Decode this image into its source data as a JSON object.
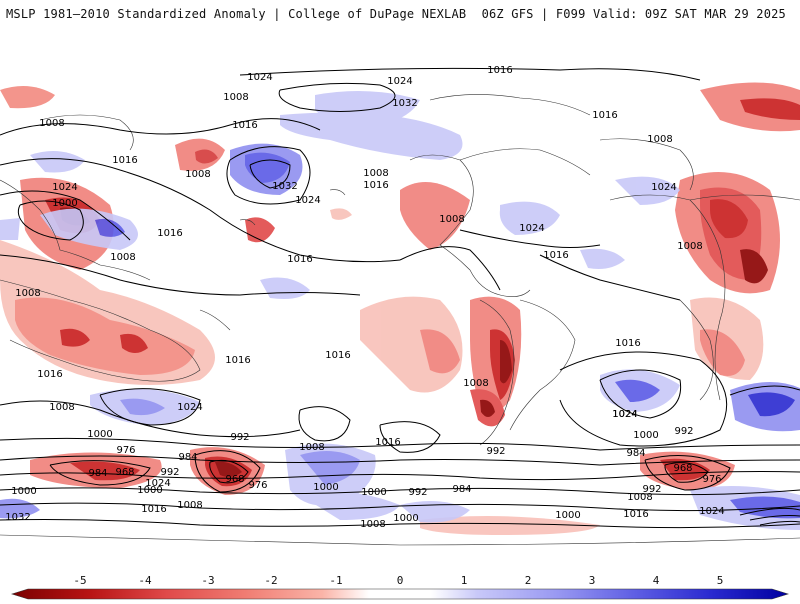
{
  "header": {
    "left_title": "MSLP 1981–2010 Standardized Anomaly | College of DuPage NEXLAB",
    "right_title": "06Z GFS | F099 Valid: 09Z SAT MAR 29 2025"
  },
  "colorbar": {
    "ticks": [
      "-5",
      "-4",
      "-3",
      "-2",
      "-1",
      "0",
      "1",
      "2",
      "3",
      "4",
      "5"
    ],
    "colors": [
      "#8b0000",
      "#c81e1e",
      "#e04a4a",
      "#f0807a",
      "#f8c0b8",
      "#ffffff",
      "#c8c8f8",
      "#9090f0",
      "#5a5ae6",
      "#2a2ad0",
      "#0000a0"
    ]
  },
  "map": {
    "isobar_labels": [
      {
        "text": "1016",
        "pos": "north-pacific-top"
      },
      {
        "text": "1024",
        "pos": "north-pacific-high"
      },
      {
        "text": "1032",
        "pos": "alaska-high"
      },
      {
        "text": "1008",
        "pos": "siberia"
      },
      {
        "text": "1000",
        "pos": "east-asia-low"
      },
      {
        "text": "1024",
        "pos": "east-china"
      },
      {
        "text": "1016",
        "pos": "japan"
      },
      {
        "text": "1008",
        "pos": "south-china"
      },
      {
        "text": "1008",
        "pos": "india-west"
      },
      {
        "text": "1016",
        "pos": "north-pacific-mid"
      },
      {
        "text": "1032",
        "pos": "north-pacific-center"
      },
      {
        "text": "1024",
        "pos": "north-pacific-center-2"
      },
      {
        "text": "1016",
        "pos": "hawaii-north"
      },
      {
        "text": "1008",
        "pos": "pacific-nw"
      },
      {
        "text": "1016",
        "pos": "pacific-nw-2"
      },
      {
        "text": "1008",
        "pos": "western-us"
      },
      {
        "text": "1024",
        "pos": "atlantic-high"
      },
      {
        "text": "1016",
        "pos": "atlantic-mid"
      },
      {
        "text": "1016",
        "pos": "tropical-pacific"
      },
      {
        "text": "1008",
        "pos": "north-europe"
      },
      {
        "text": "1016",
        "pos": "north-europe-2"
      },
      {
        "text": "1024",
        "pos": "europe"
      },
      {
        "text": "1008",
        "pos": "africa-north"
      },
      {
        "text": "1016",
        "pos": "south-atlantic"
      },
      {
        "text": "1024",
        "pos": "south-atlantic-high"
      },
      {
        "text": "1008",
        "pos": "indian-ocean"
      },
      {
        "text": "1016",
        "pos": "australia-south"
      },
      {
        "text": "1024",
        "pos": "south-indian-high"
      },
      {
        "text": "1016",
        "pos": "south-indian-2"
      },
      {
        "text": "1016",
        "pos": "south-pacific"
      },
      {
        "text": "1008",
        "pos": "south-pacific-2"
      },
      {
        "text": "1000",
        "pos": "southern-ocean"
      },
      {
        "text": "992",
        "pos": "southern-ocean-2"
      },
      {
        "text": "984",
        "pos": "southern-ocean-3"
      },
      {
        "text": "976",
        "pos": "antarctic-low"
      },
      {
        "text": "968",
        "pos": "antarctic-low-2"
      },
      {
        "text": "984",
        "pos": "antarctic-low-3"
      },
      {
        "text": "968",
        "pos": "antarctic-low-4"
      },
      {
        "text": "992",
        "pos": "antarctic-low-5"
      },
      {
        "text": "976",
        "pos": "antarctic-low-6"
      },
      {
        "text": "1024",
        "pos": "antarctica-high"
      },
      {
        "text": "1000",
        "pos": "antarctica"
      },
      {
        "text": "1032",
        "pos": "antarctica-2"
      },
      {
        "text": "1008",
        "pos": "antarctica-3"
      },
      {
        "text": "1016",
        "pos": "antarctica-4"
      },
      {
        "text": "1000",
        "pos": "antarctica-5"
      },
      {
        "text": "1008",
        "pos": "antarctica-6"
      },
      {
        "text": "1000",
        "pos": "south-atlantic-low"
      },
      {
        "text": "992",
        "pos": "south-atlantic-low-2"
      },
      {
        "text": "984",
        "pos": "south-atlantic-low-3"
      },
      {
        "text": "1000",
        "pos": "south-atlantic-low-4"
      },
      {
        "text": "992",
        "pos": "south-indian-low"
      },
      {
        "text": "984",
        "pos": "south-indian-low-2"
      },
      {
        "text": "968",
        "pos": "south-indian-low-3"
      },
      {
        "text": "976",
        "pos": "south-indian-low-4"
      },
      {
        "text": "1000",
        "pos": "south-indian-low-5"
      },
      {
        "text": "1008",
        "pos": "south-indian-low-6"
      },
      {
        "text": "1016",
        "pos": "south-indian-low-7"
      },
      {
        "text": "1024",
        "pos": "south-indian-low-8"
      },
      {
        "text": "1024",
        "pos": "south-indian-high-2"
      },
      {
        "text": "992",
        "pos": "south-indian-low-9"
      },
      {
        "text": "1000",
        "pos": "south-indian-low-10"
      },
      {
        "text": "1016",
        "pos": "south-indian-low-11"
      },
      {
        "text": "1008",
        "pos": "atlantic-sw"
      },
      {
        "text": "992",
        "pos": "north-pacific-low"
      },
      {
        "text": "1000",
        "pos": "north-pacific-low-2"
      },
      {
        "text": "1008",
        "pos": "north-pacific-low-3"
      },
      {
        "text": "1024",
        "pos": "pacific-sw"
      },
      {
        "text": "1008",
        "pos": "pacific-sw-2"
      }
    ]
  }
}
